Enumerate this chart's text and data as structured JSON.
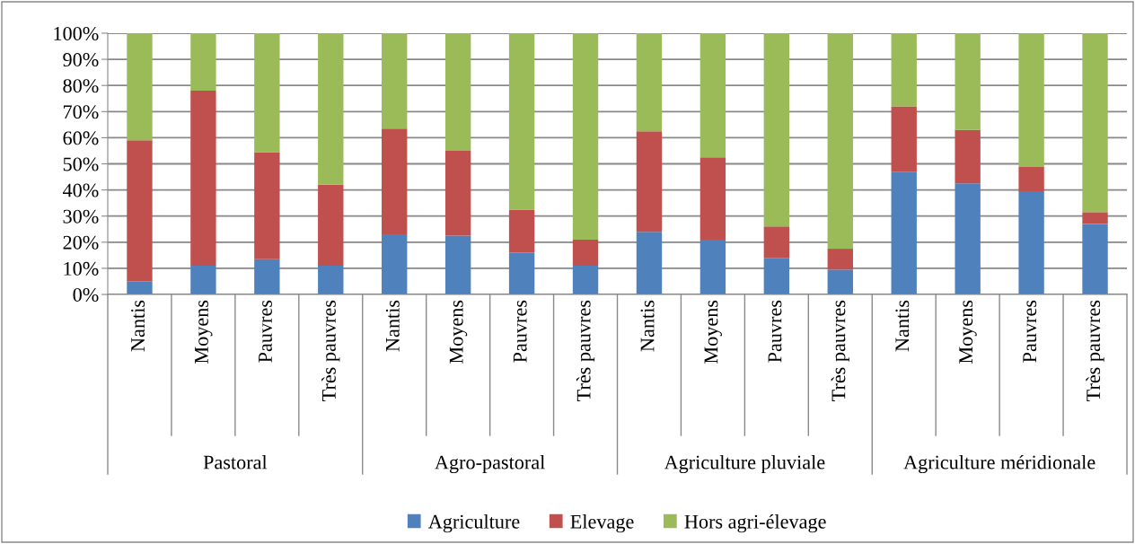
{
  "chart_data": {
    "type": "bar",
    "stacked": true,
    "categories": [
      "Nantis",
      "Moyens",
      "Pauvres",
      "Très pauvres",
      "Nantis",
      "Moyens",
      "Pauvres",
      "Très pauvres",
      "Nantis",
      "Moyens",
      "Pauvres",
      "Très pauvres",
      "Nantis",
      "Moyens",
      "Pauvres",
      "Très pauvres"
    ],
    "annotations": [
      "Pastoral",
      "Agro-pastoral",
      "Agriculture pluviale",
      "Agriculture méridionale"
    ],
    "series": [
      {
        "name": "Agriculture",
        "color": "#4f81bd",
        "values": [
          5,
          11,
          13.5,
          11,
          23,
          22.5,
          16,
          11,
          24,
          21,
          14,
          9.5,
          47,
          42.5,
          39.5,
          27
        ]
      },
      {
        "name": "Elevage",
        "color": "#c0504d",
        "values": [
          54,
          67,
          41,
          31,
          40.5,
          32.5,
          16.5,
          10,
          38.5,
          31.5,
          12,
          8,
          25,
          20.5,
          9.5,
          4.5
        ]
      },
      {
        "name": "Hors agri-élevage",
        "color": "#9bbb59",
        "values": [
          41,
          22,
          45.5,
          58,
          36.5,
          45,
          67.5,
          79,
          37.5,
          47.5,
          74,
          82.5,
          28,
          37,
          51,
          68.5
        ]
      }
    ],
    "ylim": [
      0,
      100
    ],
    "yticks": [
      {
        "value": 0,
        "label": "0%"
      },
      {
        "value": 10,
        "label": "10%"
      },
      {
        "value": 20,
        "label": "20%"
      },
      {
        "value": 30,
        "label": "30%"
      },
      {
        "value": 40,
        "label": "40%"
      },
      {
        "value": 50,
        "label": "50%"
      },
      {
        "value": 60,
        "label": "60%"
      },
      {
        "value": 70,
        "label": "70%"
      },
      {
        "value": 80,
        "label": "80%"
      },
      {
        "value": 90,
        "label": "90%"
      },
      {
        "value": 100,
        "label": "100%"
      }
    ],
    "grid": "y",
    "legend": "bottom"
  }
}
